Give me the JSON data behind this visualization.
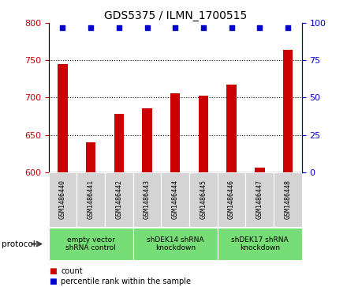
{
  "title": "GDS5375 / ILMN_1700515",
  "samples": [
    "GSM1486440",
    "GSM1486441",
    "GSM1486442",
    "GSM1486443",
    "GSM1486444",
    "GSM1486445",
    "GSM1486446",
    "GSM1486447",
    "GSM1486448"
  ],
  "counts": [
    745,
    640,
    678,
    686,
    706,
    703,
    717,
    606,
    764
  ],
  "percentile_ranks": [
    97,
    97,
    97,
    97,
    97,
    97,
    97,
    97,
    97
  ],
  "ylim_left": [
    600,
    800
  ],
  "ylim_right": [
    0,
    100
  ],
  "yticks_left": [
    600,
    650,
    700,
    750,
    800
  ],
  "yticks_right": [
    0,
    25,
    50,
    75,
    100
  ],
  "bar_color": "#cc0000",
  "scatter_color": "#0000cc",
  "group_boundaries": [
    {
      "label": "empty vector\nshRNA control",
      "start": 0,
      "end": 3
    },
    {
      "label": "shDEK14 shRNA\nknockdown",
      "start": 3,
      "end": 6
    },
    {
      "label": "shDEK17 shRNA\nknockdown",
      "start": 6,
      "end": 9
    }
  ],
  "legend_items": [
    {
      "label": "count",
      "color": "#cc0000"
    },
    {
      "label": "percentile rank within the sample",
      "color": "#0000cc"
    }
  ],
  "protocol_label": "protocol",
  "background_color": "#ffffff",
  "plot_bg_color": "#ffffff",
  "label_box_color": "#d4d4d4",
  "group_box_color": "#77dd77",
  "bar_width": 0.35
}
